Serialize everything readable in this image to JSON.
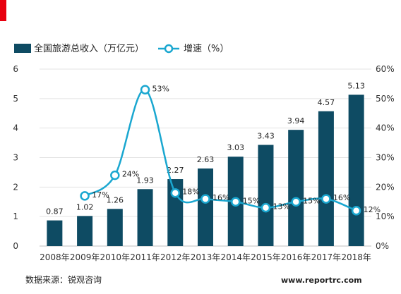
{
  "chart_data": {
    "type": "bar+line",
    "categories": [
      "2008年",
      "2009年",
      "2010年",
      "2011年",
      "2012年",
      "2013年",
      "2014年",
      "2015年",
      "2016年",
      "2017年",
      "2018年"
    ],
    "series": [
      {
        "name": "全国旅游总收入（万亿元）",
        "type": "bar",
        "axis": "left",
        "color": "#0e4b63",
        "values": [
          0.87,
          1.02,
          1.26,
          1.93,
          2.27,
          2.63,
          3.03,
          3.43,
          3.94,
          4.57,
          5.13
        ],
        "labels": [
          "0.87",
          "1.02",
          "1.26",
          "1.93",
          "2.27",
          "2.63",
          "3.03",
          "3.43",
          "3.94",
          "4.57",
          "5.13"
        ]
      },
      {
        "name": "增速（%）",
        "type": "line",
        "axis": "right",
        "color": "#1aa7d0",
        "values": [
          null,
          17,
          24,
          53,
          18,
          16,
          15,
          13,
          15,
          16,
          12
        ],
        "labels": [
          "",
          "17%",
          "24%",
          "53%",
          "18%",
          "16%",
          "15%",
          "13%",
          "15%",
          "16%",
          "12%"
        ]
      }
    ],
    "y_left": {
      "min": 0,
      "max": 6,
      "ticks": [
        "0",
        "1",
        "2",
        "3",
        "4",
        "5",
        "6"
      ]
    },
    "y_right": {
      "min": 0,
      "max": 60,
      "ticks": [
        "0%",
        "10%",
        "20%",
        "30%",
        "40%",
        "50%",
        "60%"
      ]
    },
    "grid": true,
    "legend_position": "top-left"
  },
  "footer": {
    "source": "数据来源：锐观咨询",
    "url": "www.reportrc.com"
  },
  "colors": {
    "accent": "#e8000f",
    "bar": "#0e4b63",
    "line": "#1aa7d0"
  }
}
